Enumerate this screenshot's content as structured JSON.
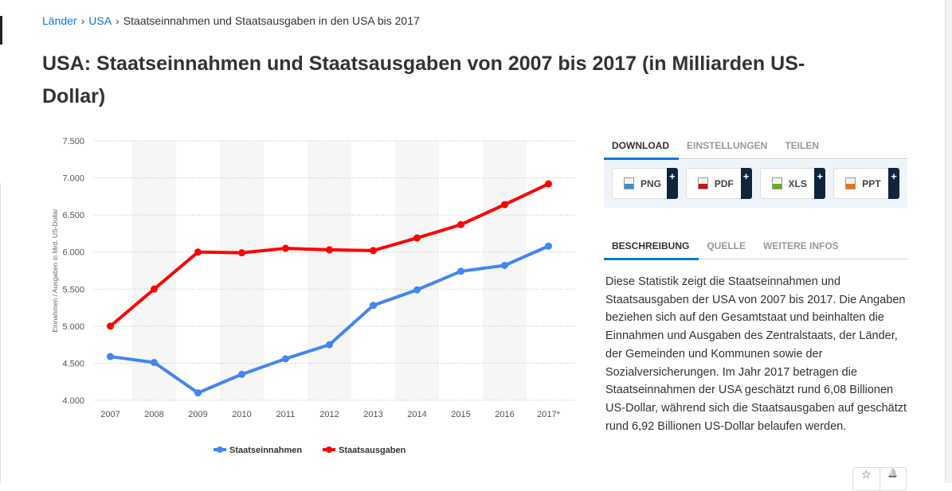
{
  "breadcrumb": {
    "items": [
      "Länder",
      "USA"
    ],
    "current": "Staatseinnahmen und Staatsausgaben in den USA bis 2017",
    "separator": "›"
  },
  "title": "USA: Staatseinnahmen und Staatsausgaben von 2007 bis 2017 (in Milliarden US-Dollar)",
  "download_tabs": [
    "DOWNLOAD",
    "EINSTELLUNGEN",
    "TEILEN"
  ],
  "downloads": [
    {
      "label": "PNG",
      "icon": "image-file-icon",
      "color": "#3a8fd8"
    },
    {
      "label": "PDF",
      "icon": "pdf-file-icon",
      "color": "#cc1111"
    },
    {
      "label": "XLS",
      "icon": "xls-file-icon",
      "color": "#6aaa1a"
    },
    {
      "label": "PPT",
      "icon": "ppt-file-icon",
      "color": "#e8741a"
    }
  ],
  "plus_label": "+",
  "info_tabs": [
    "BESCHREIBUNG",
    "QUELLE",
    "WEITERE INFOS"
  ],
  "description": "Diese Statistik zeigt die Staatseinnahmen und Staatsausgaben der USA von 2007 bis 2017. Die Angaben beziehen sich auf den Gesamtstaat und beinhalten die Einnahmen und Ausgaben des Zentralstaats, der Länder, der Gemeinden und Kommunen sowie der Sozialversicherungen. Im Jahr 2017 betragen die Staatseinnahmen der USA geschätzt rund 6,08 Billionen US-Dollar, während sich die Staatsausgaben auf geschätzt rund 6,92 Billionen US-Dollar belaufen werden.",
  "actions": {
    "star": "☆",
    "bell": "🔔"
  },
  "chart_data": {
    "type": "line",
    "categories": [
      "2007",
      "2008",
      "2009",
      "2010",
      "2011",
      "2012",
      "2013",
      "2014",
      "2015",
      "2016",
      "2017*"
    ],
    "ylabel": "Einnahmen / Ausgaben in Mrd. US-Dollar",
    "ylim": [
      4000,
      7500
    ],
    "yticks": [
      "4.000",
      "4.500",
      "5.000",
      "5.500",
      "6.000",
      "6.500",
      "7.000",
      "7.500"
    ],
    "grid": true,
    "legend": "bottom",
    "series": [
      {
        "name": "Staatseinnahmen",
        "color": "#4285f4",
        "values": [
          4590,
          4510,
          4100,
          4350,
          4560,
          4750,
          5280,
          5490,
          5740,
          5820,
          6080
        ]
      },
      {
        "name": "Staatsausgaben",
        "color": "#ff0000",
        "values": [
          5000,
          5500,
          6000,
          5990,
          6050,
          6030,
          6020,
          6190,
          6370,
          6640,
          6920
        ]
      }
    ]
  }
}
